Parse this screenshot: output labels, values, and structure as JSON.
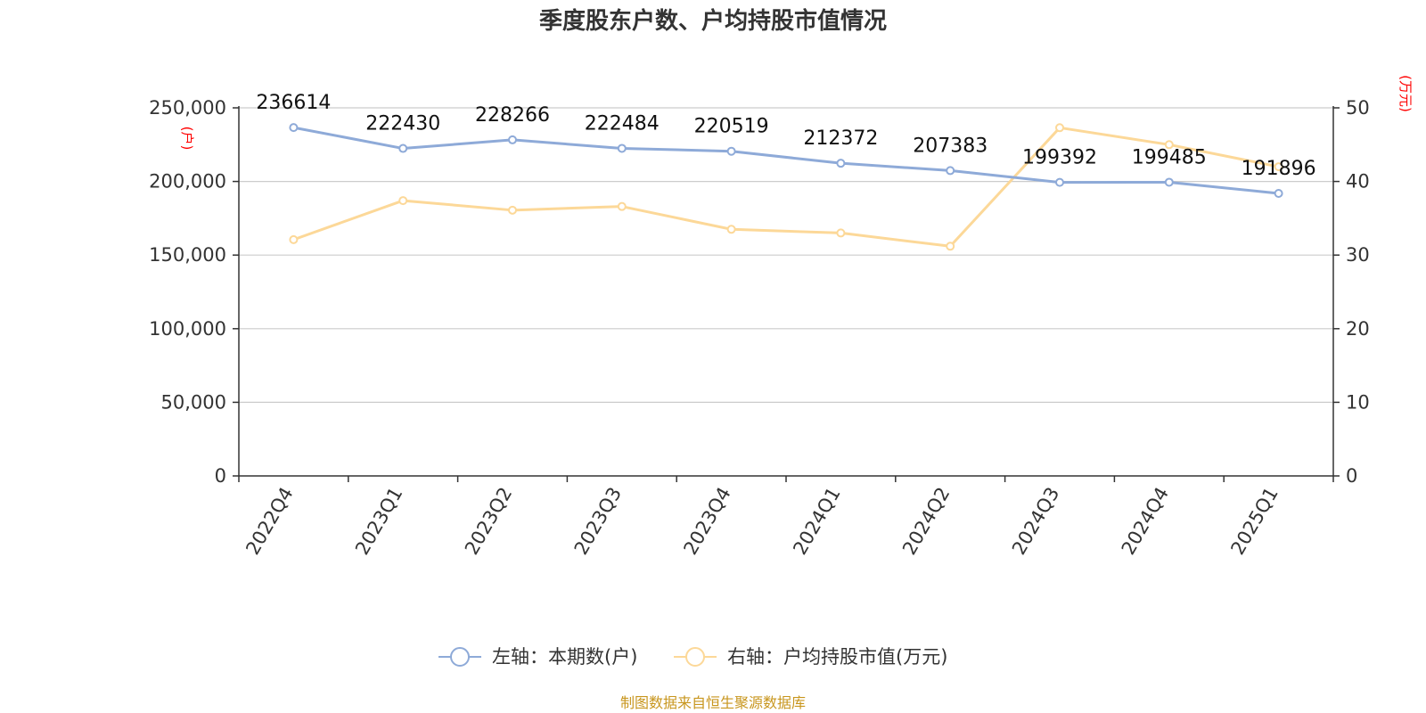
{
  "chart_data": {
    "type": "line",
    "title": "季度股东户数、户均持股市值情况",
    "categories": [
      "2022Q4",
      "2023Q1",
      "2023Q2",
      "2023Q3",
      "2023Q4",
      "2024Q1",
      "2024Q2",
      "2024Q3",
      "2024Q4",
      "2025Q1"
    ],
    "left_axis": {
      "unit_label": "(户)",
      "ylim": [
        0,
        250000
      ],
      "ticks": [
        0,
        50000,
        100000,
        150000,
        200000,
        250000
      ]
    },
    "right_axis": {
      "unit_label": "(万元)",
      "ylim": [
        0,
        50
      ],
      "ticks": [
        0,
        10,
        20,
        30,
        40,
        50
      ]
    },
    "series": [
      {
        "name": "左轴：本期数(户)",
        "axis": "left",
        "color": "#8eaad8",
        "values": [
          236614,
          222430,
          228266,
          222484,
          220519,
          212372,
          207383,
          199392,
          199485,
          191896
        ],
        "data_labels": [
          "236614",
          "222430",
          "228266",
          "222484",
          "220519",
          "212372",
          "207383",
          "199392",
          "199485",
          "191896"
        ]
      },
      {
        "name": "右轴：户均持股市值(万元)",
        "axis": "right",
        "color": "#fcd898",
        "values": [
          32.1,
          37.4,
          36.1,
          36.6,
          33.5,
          33.0,
          31.2,
          47.3,
          45.0,
          42.0
        ]
      }
    ],
    "grid": true,
    "legend_position": "bottom"
  },
  "source_text": "制图数据来自恒生聚源数据库"
}
